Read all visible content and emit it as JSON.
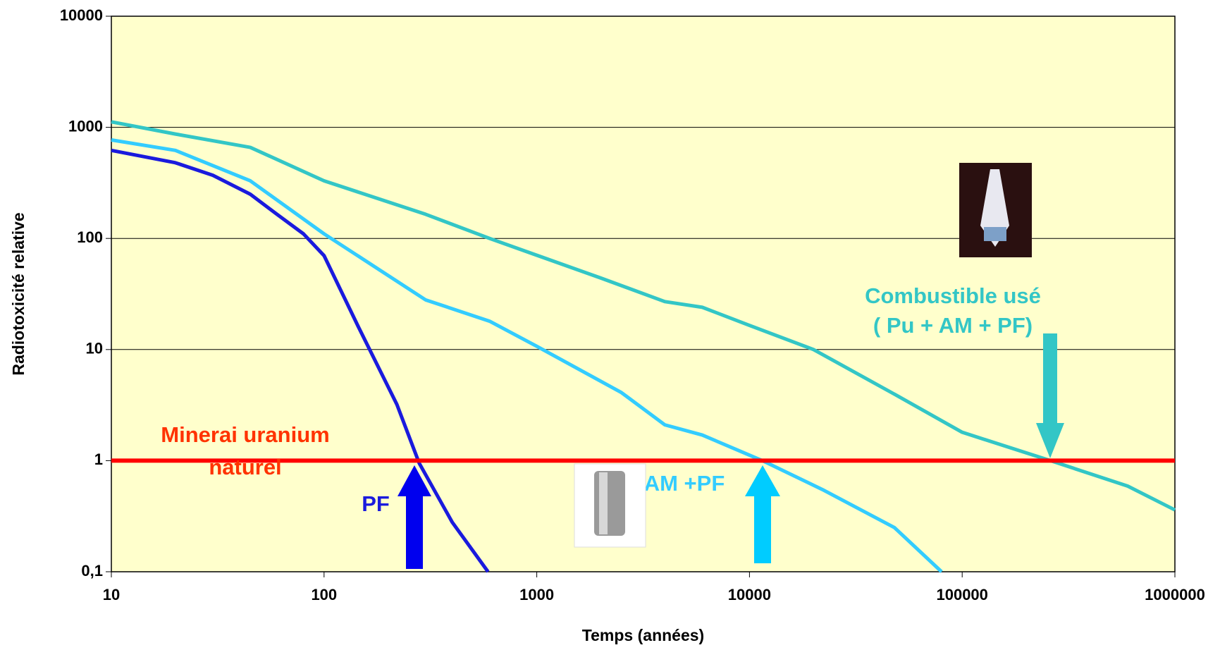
{
  "chart_data": {
    "type": "line",
    "x_scale": "log",
    "y_scale": "log",
    "x_label": "Temps (années)",
    "y_label": "Radiotoxicité relative",
    "xlim": [
      10,
      1000000
    ],
    "xticks": [
      10,
      100,
      1000,
      10000,
      100000,
      1000000
    ],
    "ylim": [
      0.1,
      10000
    ],
    "yticks": [
      {
        "value": 0.1,
        "label": "0,1"
      },
      1,
      10,
      100,
      1000,
      10000
    ],
    "grid": true,
    "background": "#ffffcc",
    "series": [
      {
        "color": "#1a1add",
        "x": [
          10,
          20,
          30,
          45,
          60,
          80,
          100,
          145,
          220,
          280,
          400,
          590
        ],
        "values": [
          620,
          480,
          370,
          250,
          165,
          110,
          70,
          16,
          3.2,
          0.95,
          0.28,
          0.1
        ]
      },
      {
        "color": "#33ccff",
        "x": [
          10,
          20,
          45,
          100,
          300,
          600,
          1000,
          2500,
          4000,
          6000,
          11500,
          22000,
          48000,
          80000
        ],
        "values": [
          770,
          620,
          330,
          110,
          28,
          18,
          10.7,
          4.1,
          2.1,
          1.7,
          1,
          0.55,
          0.25,
          0.1
        ]
      },
      {
        "color": "#33c6c6",
        "x": [
          10,
          20,
          45,
          100,
          300,
          600,
          2000,
          4000,
          6000,
          10000,
          20000,
          50000,
          100000,
          260000,
          600000,
          1000000
        ],
        "values": [
          1120,
          870,
          660,
          330,
          165,
          100,
          44,
          27,
          24,
          16.5,
          10,
          3.8,
          1.8,
          1,
          0.59,
          0.36
        ]
      }
    ],
    "reference_line": {
      "value": 1,
      "color": "#ff0000"
    },
    "annotations": [
      {
        "lines": [
          "Minerai uranium",
          "naturel"
        ],
        "color": "#ff3300"
      },
      {
        "lines": [
          "PF"
        ],
        "color": "#1a1add"
      },
      {
        "lines": [
          "AM +PF"
        ],
        "color": "#33ccff"
      },
      {
        "lines": [
          "Combustible usé",
          "( Pu + AM + PF)"
        ],
        "color": "#33c6c6"
      }
    ]
  }
}
